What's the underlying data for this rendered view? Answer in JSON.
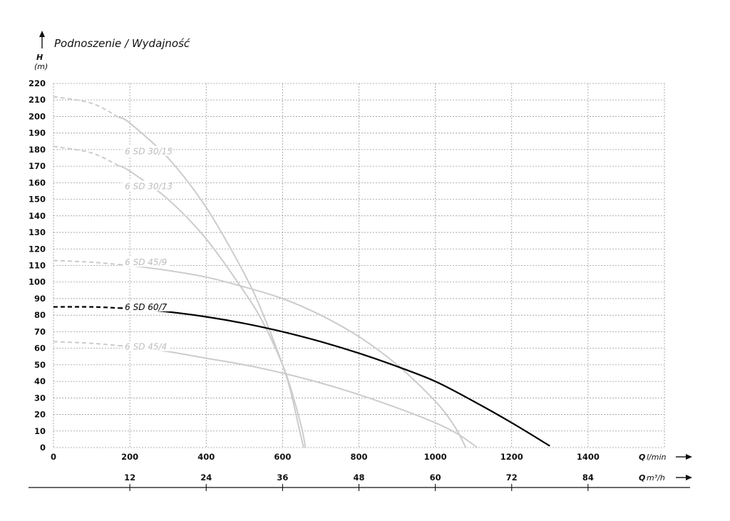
{
  "chart_data": {
    "type": "line",
    "title": "Podnoszenie / Wydajność",
    "ylabel": "H",
    "yunit": "(m)",
    "xlabel": "Q",
    "xunit": "l/min",
    "x2label": "Q",
    "x2unit": "m³/h",
    "ylim": [
      0,
      220
    ],
    "xlim": [
      0,
      1600
    ],
    "yticks": [
      "0",
      "10",
      "20",
      "30",
      "40",
      "50",
      "60",
      "70",
      "80",
      "90",
      "100",
      "110",
      "120",
      "130",
      "140",
      "150",
      "160",
      "170",
      "180",
      "190",
      "200",
      "210",
      "220"
    ],
    "xticks": [
      "0",
      "200",
      "400",
      "600",
      "800",
      "1000",
      "1200",
      "1400"
    ],
    "x2ticks": [
      "12",
      "24",
      "36",
      "48",
      "60",
      "72",
      "84"
    ],
    "grid": true,
    "series": [
      {
        "name": "6 SD 30/15",
        "color": "#cccccc",
        "label_at": [
          243,
          178
        ],
        "dashed_until": 170,
        "x": [
          0,
          100,
          200,
          300,
          400,
          500,
          550,
          600,
          620,
          640,
          655
        ],
        "y": [
          212,
          208,
          196,
          175,
          145,
          105,
          80,
          50,
          35,
          15,
          0
        ]
      },
      {
        "name": "6 SD 30/13",
        "color": "#cccccc",
        "label_at": [
          243,
          157
        ],
        "dashed_until": 170,
        "x": [
          0,
          100,
          200,
          300,
          400,
          500,
          550,
          600,
          625,
          650,
          660
        ],
        "y": [
          182,
          178,
          167,
          150,
          126,
          94,
          75,
          50,
          33,
          12,
          0
        ]
      },
      {
        "name": "6 SD 45/9",
        "color": "#cccccc",
        "label_at": [
          243,
          111
        ],
        "dashed_until": 170,
        "x": [
          0,
          100,
          200,
          300,
          400,
          500,
          600,
          700,
          800,
          900,
          1000,
          1050,
          1080
        ],
        "y": [
          113,
          112,
          110,
          107,
          103,
          97,
          90,
          80,
          67,
          50,
          28,
          13,
          0
        ]
      },
      {
        "name": "6 SD 60/7",
        "color": "#000000",
        "label_at": [
          243,
          84
        ],
        "dashed_until": 170,
        "x": [
          0,
          100,
          200,
          300,
          400,
          500,
          600,
          700,
          800,
          900,
          1000,
          1100,
          1200,
          1300
        ],
        "y": [
          85,
          85,
          84,
          82,
          79,
          75,
          70,
          64,
          57,
          49,
          40,
          28,
          15,
          1
        ]
      },
      {
        "name": "6 SD 45/4",
        "color": "#cccccc",
        "label_at": [
          243,
          60
        ],
        "dashed_until": 170,
        "x": [
          0,
          100,
          200,
          300,
          400,
          500,
          600,
          700,
          800,
          900,
          1000,
          1060,
          1110
        ],
        "y": [
          64,
          63,
          61,
          58,
          54,
          50,
          45,
          39,
          32,
          24,
          15,
          8,
          0
        ]
      }
    ]
  }
}
